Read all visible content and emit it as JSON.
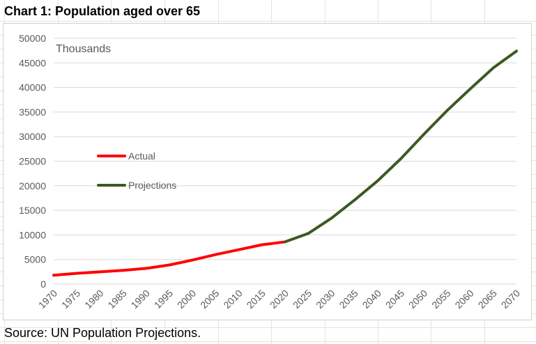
{
  "page": {
    "title": "Chart 1: Population aged over 65",
    "source": "Source: UN Population Projections."
  },
  "chart_data": {
    "type": "line",
    "title": "Chart 1: Population aged over 65",
    "unit_label": "Thousands",
    "x": [
      1970,
      1975,
      1980,
      1985,
      1990,
      1995,
      2000,
      2005,
      2010,
      2015,
      2020,
      2025,
      2030,
      2035,
      2040,
      2045,
      2050,
      2055,
      2060,
      2065,
      2070
    ],
    "ylim": [
      0,
      50000
    ],
    "yticks": [
      0,
      5000,
      10000,
      15000,
      20000,
      25000,
      30000,
      35000,
      40000,
      45000,
      50000
    ],
    "grid": true,
    "legend_position": "left",
    "series": [
      {
        "name": "Actual",
        "color": "#ff0000",
        "x": [
          1970,
          1975,
          1980,
          1985,
          1990,
          1995,
          2000,
          2005,
          2010,
          2015,
          2020
        ],
        "values": [
          1800,
          2200,
          2500,
          2800,
          3200,
          3900,
          4900,
          6000,
          7000,
          8000,
          8600
        ]
      },
      {
        "name": "Projections",
        "color": "#3b5a23",
        "x": [
          2020,
          2025,
          2030,
          2035,
          2040,
          2045,
          2050,
          2055,
          2060,
          2065,
          2070
        ],
        "values": [
          8600,
          10300,
          13400,
          17100,
          21000,
          25500,
          30500,
          35300,
          39700,
          44000,
          47400
        ]
      }
    ]
  }
}
